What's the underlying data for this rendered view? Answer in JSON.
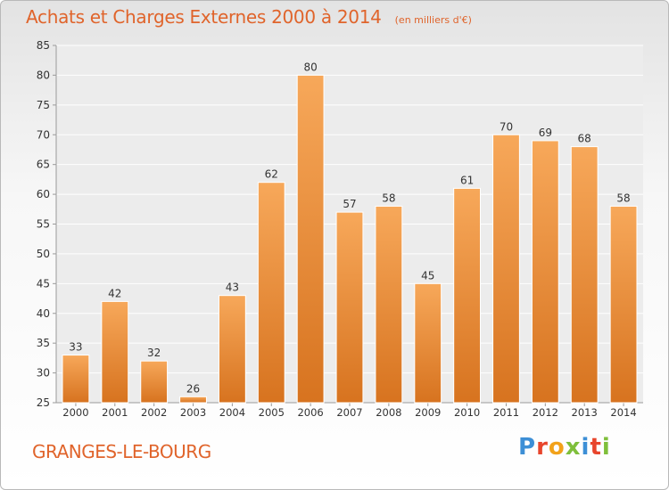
{
  "header": {
    "title": "Achats et Charges Externes 2000 à 2014",
    "subtitle": "(en milliers d'€)"
  },
  "footer": {
    "location": "GRANGES-LE-BOURG",
    "logo_text": "Proxiti"
  },
  "colors": {
    "accent": "#e0642b",
    "bar_light": "#f7a85a",
    "bar_dark": "#d7731f",
    "logo_letters": [
      "#3d8fd6",
      "#e8452c",
      "#f2a21a",
      "#7fbf3b",
      "#3d8fd6",
      "#e8452c",
      "#7fbf3b"
    ]
  },
  "chart_data": {
    "type": "bar",
    "title": "Achats et Charges Externes 2000 à 2014",
    "subtitle": "(en milliers d'€)",
    "categories": [
      "2000",
      "2001",
      "2002",
      "2003",
      "2004",
      "2005",
      "2006",
      "2007",
      "2008",
      "2009",
      "2010",
      "2011",
      "2012",
      "2013",
      "2014"
    ],
    "values": [
      33,
      42,
      32,
      26,
      43,
      62,
      80,
      57,
      58,
      45,
      61,
      70,
      69,
      68,
      58
    ],
    "ylim": [
      25,
      85
    ],
    "yticks": [
      25,
      30,
      35,
      40,
      45,
      50,
      55,
      60,
      65,
      70,
      75,
      80,
      85
    ],
    "grid": true,
    "data_labels": true
  }
}
